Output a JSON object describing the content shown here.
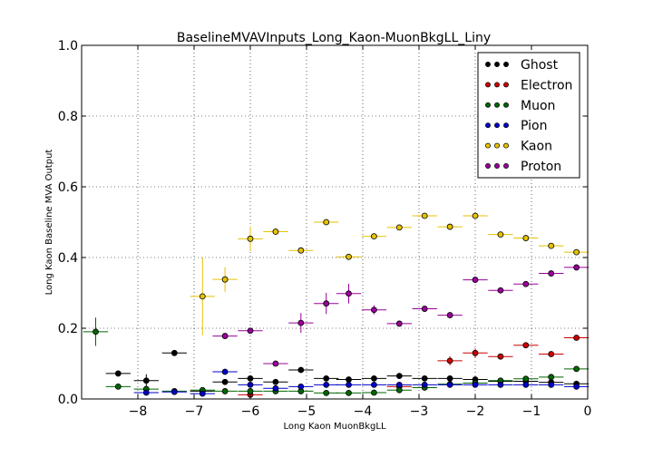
{
  "chart_data": {
    "type": "scatter",
    "title": "BaselineMVAVInputs_Long_Kaon-MuonBkgLL_Liny",
    "xlabel": "Long Kaon MuonBkgLL",
    "ylabel": "Long Kaon Baseline MVA Output",
    "xlim": [
      -9,
      0
    ],
    "ylim": [
      0,
      1
    ],
    "xticks": [
      "−8",
      "−7",
      "−6",
      "−5",
      "−4",
      "−3",
      "−2",
      "−1",
      "0"
    ],
    "yticks": [
      "0.0",
      "0.2",
      "0.4",
      "0.6",
      "0.8",
      "1.0"
    ],
    "grid": true,
    "legend_position": "top-right",
    "x_half_width": 0.22,
    "series": [
      {
        "name": "Ghost",
        "color": "#000000",
        "x": [
          -8.35,
          -7.85,
          -7.35,
          -6.85,
          -6.45,
          -6.0,
          -5.55,
          -5.1,
          -4.65,
          -4.25,
          -3.8,
          -3.35,
          -2.9,
          -2.45,
          -2.0,
          -1.55,
          -1.1,
          -0.65,
          -0.2
        ],
        "y": [
          0.072,
          0.052,
          0.13,
          0.022,
          0.048,
          0.058,
          0.048,
          0.082,
          0.058,
          0.055,
          0.058,
          0.065,
          0.058,
          0.058,
          0.055,
          0.05,
          0.05,
          0.047,
          0.043
        ],
        "yerr": [
          0.004,
          0.018,
          0.004,
          0.004,
          0.004,
          0.004,
          0.003,
          0.003,
          0.003,
          0.003,
          0.003,
          0.003,
          0.003,
          0.003,
          0.003,
          0.003,
          0.003,
          0.003,
          0.003
        ]
      },
      {
        "name": "Electron",
        "color": "#cc0000",
        "x": [
          -6.0,
          -3.35,
          -2.45,
          -2.0,
          -1.55,
          -1.1,
          -0.65,
          -0.2
        ],
        "y": [
          0.012,
          0.035,
          0.108,
          0.13,
          0.12,
          0.152,
          0.127,
          0.173
        ],
        "yerr": [
          0.004,
          0.004,
          0.013,
          0.013,
          0.008,
          0.006,
          0.005,
          0.004
        ]
      },
      {
        "name": "Muon",
        "color": "#006600",
        "x": [
          -8.75,
          -8.35,
          -7.85,
          -7.35,
          -6.85,
          -6.45,
          -6.0,
          -5.55,
          -5.1,
          -4.65,
          -4.25,
          -3.8,
          -3.35,
          -2.9,
          -2.45,
          -2.0,
          -1.55,
          -1.1,
          -0.65,
          -0.2
        ],
        "y": [
          0.19,
          0.035,
          0.028,
          0.022,
          0.025,
          0.022,
          0.022,
          0.022,
          0.022,
          0.017,
          0.017,
          0.018,
          0.025,
          0.032,
          0.042,
          0.045,
          0.052,
          0.057,
          0.062,
          0.085
        ],
        "yerr": [
          0.04,
          0.004,
          0.004,
          0.003,
          0.003,
          0.003,
          0.003,
          0.003,
          0.003,
          0.003,
          0.003,
          0.003,
          0.003,
          0.003,
          0.003,
          0.003,
          0.003,
          0.003,
          0.003,
          0.003
        ]
      },
      {
        "name": "Pion",
        "color": "#0000cc",
        "x": [
          -7.85,
          -7.35,
          -6.85,
          -6.45,
          -6.0,
          -5.55,
          -5.1,
          -4.65,
          -4.25,
          -3.8,
          -3.35,
          -2.9,
          -2.45,
          -2.0,
          -1.55,
          -1.1,
          -0.65,
          -0.2
        ],
        "y": [
          0.018,
          0.02,
          0.015,
          0.077,
          0.04,
          0.03,
          0.035,
          0.04,
          0.04,
          0.04,
          0.04,
          0.04,
          0.04,
          0.04,
          0.04,
          0.04,
          0.04,
          0.035
        ],
        "yerr": [
          0.004,
          0.004,
          0.004,
          0.006,
          0.004,
          0.003,
          0.003,
          0.003,
          0.003,
          0.003,
          0.003,
          0.003,
          0.003,
          0.003,
          0.003,
          0.003,
          0.003,
          0.003
        ]
      },
      {
        "name": "Kaon",
        "color": "#e6c200",
        "x": [
          -6.85,
          -6.45,
          -6.0,
          -5.55,
          -5.1,
          -4.65,
          -4.25,
          -3.8,
          -3.35,
          -2.9,
          -2.45,
          -2.0,
          -1.55,
          -1.1,
          -0.65,
          -0.2
        ],
        "y": [
          0.29,
          0.338,
          0.453,
          0.473,
          0.42,
          0.5,
          0.402,
          0.46,
          0.485,
          0.518,
          0.487,
          0.518,
          0.465,
          0.455,
          0.433,
          0.415
        ],
        "yerr": [
          0.11,
          0.035,
          0.035,
          0.01,
          0.008,
          0.006,
          0.005,
          0.005,
          0.004,
          0.004,
          0.004,
          0.004,
          0.004,
          0.004,
          0.004,
          0.004
        ]
      },
      {
        "name": "Proton",
        "color": "#990099",
        "x": [
          -6.45,
          -6.0,
          -5.55,
          -5.1,
          -4.65,
          -4.25,
          -3.8,
          -3.35,
          -2.9,
          -2.45,
          -2.0,
          -1.55,
          -1.1,
          -0.65,
          -0.2
        ],
        "y": [
          0.178,
          0.193,
          0.1,
          0.215,
          0.27,
          0.298,
          0.252,
          0.213,
          0.255,
          0.237,
          0.337,
          0.307,
          0.325,
          0.355,
          0.372
        ],
        "yerr": [
          0.004,
          0.004,
          0.006,
          0.028,
          0.03,
          0.028,
          0.013,
          0.005,
          0.005,
          0.005,
          0.004,
          0.004,
          0.004,
          0.004,
          0.004
        ]
      }
    ]
  }
}
